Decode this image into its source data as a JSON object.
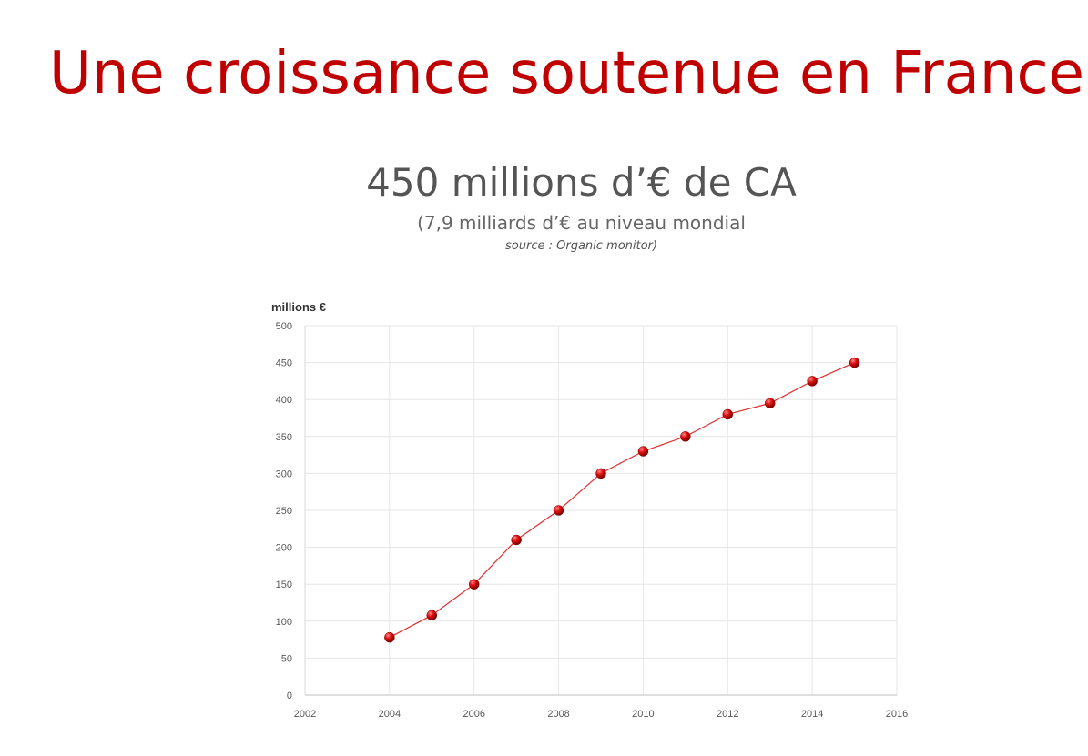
{
  "slide": {
    "title": "Une croissance soutenue en France",
    "headline": "450 millions d’€ de CA",
    "subline": "(7,9 milliards d’€ au niveau mondial",
    "source": "source : Organic monitor)"
  },
  "colors": {
    "title": "#c00000",
    "series": "#e03030",
    "marker": "#cc0000",
    "grid": "#e6e6e6"
  },
  "chart_data": {
    "type": "scatter",
    "ylabel": "millions €",
    "xlabel": "",
    "xlim": [
      2002,
      2016
    ],
    "ylim": [
      0,
      500
    ],
    "xticks": [
      2002,
      2004,
      2006,
      2008,
      2010,
      2012,
      2014,
      2016
    ],
    "yticks": [
      0,
      50,
      100,
      150,
      200,
      250,
      300,
      350,
      400,
      450,
      500
    ],
    "grid": true,
    "legend": "none",
    "series": [
      {
        "x": [
          2004,
          2005,
          2006,
          2007,
          2008,
          2009,
          2010,
          2011,
          2012,
          2013,
          2014,
          2015
        ],
        "y": [
          78,
          108,
          150,
          210,
          250,
          300,
          330,
          350,
          380,
          395,
          425,
          450
        ]
      }
    ]
  }
}
